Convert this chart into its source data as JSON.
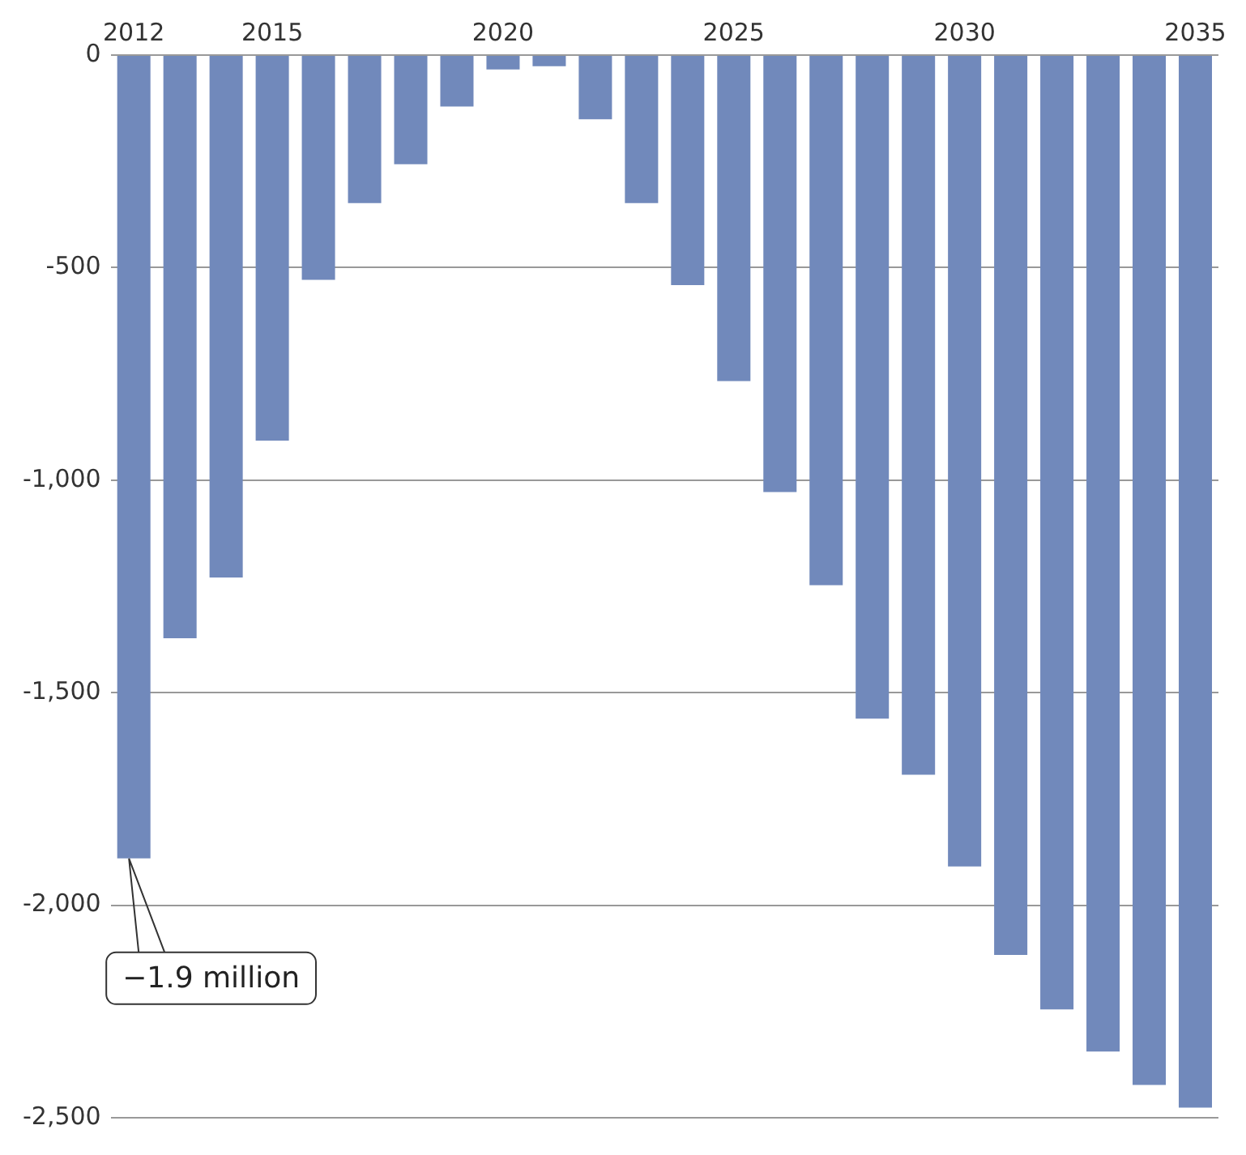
{
  "chart_data": {
    "type": "bar",
    "categories": [
      "2012",
      null,
      null,
      "2015",
      null,
      null,
      null,
      null,
      "2020",
      null,
      null,
      null,
      null,
      "2025",
      null,
      null,
      null,
      null,
      "2030",
      null,
      null,
      null,
      null,
      "2035"
    ],
    "values": [
      -1890,
      -1372,
      -1229,
      -907,
      -529,
      -348,
      -257,
      -121,
      -34,
      -26,
      -151,
      -348,
      -541,
      -767,
      -1028,
      -1247,
      -1561,
      -1693,
      -1909,
      -2117,
      -2245,
      -2344,
      -2423,
      -2476
    ],
    "color": "#7189bb",
    "ylim": [
      -2500,
      0
    ],
    "yticks": [
      {
        "value": -2500,
        "label": "-2,500"
      },
      {
        "value": -2000,
        "label": "-2,000"
      },
      {
        "value": -1500,
        "label": "-1,500"
      },
      {
        "value": -1000,
        "label": "-1,000"
      },
      -500,
      0
    ],
    "grid": "y",
    "annotations": [
      {
        "text": "−1.9 million",
        "x": "2012",
        "y": -1890
      }
    ]
  }
}
